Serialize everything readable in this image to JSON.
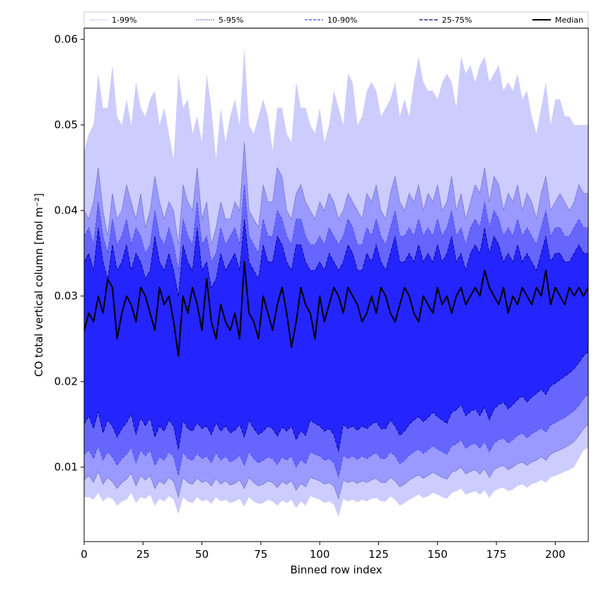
{
  "chart_data": {
    "type": "area",
    "xlabel": "Binned row index",
    "ylabel": "CO total vertical column [mol m⁻²]",
    "xlim": [
      0,
      214
    ],
    "ylim": [
      0.0013,
      0.0613
    ],
    "xticks": [
      0,
      25,
      50,
      75,
      100,
      125,
      150,
      175,
      200
    ],
    "xtick_labels": [
      "0",
      "25",
      "50",
      "75",
      "100",
      "125",
      "150",
      "175",
      "200"
    ],
    "yticks": [
      0.01,
      0.02,
      0.03,
      0.04,
      0.05,
      0.06
    ],
    "ytick_labels": [
      "0.01",
      "0.02",
      "0.03",
      "0.04",
      "0.05",
      "0.06"
    ],
    "grid": false,
    "legend_position": "top, outside plot, single row",
    "legend": [
      "1-99%",
      "5-95%",
      "10-90%",
      "25-75%",
      "Median"
    ],
    "colors": {
      "band_1_99": "#ccccff",
      "band_5_95": "#9999ff",
      "band_10_90": "#6666ff",
      "band_25_75": "#2424ff",
      "median": "#000000",
      "edge_5_95": "#6464aa",
      "edge_10_90": "#4444ee",
      "edge_25_75": "#00007a"
    },
    "x_step": 2,
    "series": [
      {
        "name": "1-99%",
        "kind": "band",
        "upper": [
          0.047,
          0.049,
          0.05,
          0.056,
          0.052,
          0.052,
          0.057,
          0.051,
          0.05,
          0.053,
          0.05,
          0.055,
          0.052,
          0.051,
          0.053,
          0.054,
          0.05,
          0.052,
          0.049,
          0.046,
          0.056,
          0.052,
          0.053,
          0.049,
          0.051,
          0.048,
          0.056,
          0.052,
          0.046,
          0.052,
          0.048,
          0.051,
          0.053,
          0.05,
          0.059,
          0.05,
          0.049,
          0.051,
          0.053,
          0.051,
          0.047,
          0.052,
          0.052,
          0.049,
          0.048,
          0.055,
          0.052,
          0.052,
          0.05,
          0.049,
          0.052,
          0.048,
          0.05,
          0.054,
          0.052,
          0.05,
          0.056,
          0.055,
          0.05,
          0.051,
          0.054,
          0.055,
          0.054,
          0.051,
          0.052,
          0.053,
          0.055,
          0.051,
          0.053,
          0.051,
          0.055,
          0.058,
          0.055,
          0.054,
          0.054,
          0.053,
          0.055,
          0.056,
          0.055,
          0.052,
          0.058,
          0.056,
          0.057,
          0.055,
          0.057,
          0.058,
          0.055,
          0.056,
          0.057,
          0.054,
          0.055,
          0.054,
          0.056,
          0.053,
          0.054,
          0.051,
          0.049,
          0.052,
          0.055,
          0.05,
          0.053,
          0.053,
          0.051,
          0.051,
          0.05,
          0.05,
          0.05,
          0.05
        ],
        "lower": [
          0.0065,
          0.0065,
          0.0062,
          0.007,
          0.006,
          0.0065,
          0.0063,
          0.0055,
          0.006,
          0.0062,
          0.007,
          0.0058,
          0.0065,
          0.0063,
          0.0068,
          0.0055,
          0.0063,
          0.006,
          0.0066,
          0.0062,
          0.0045,
          0.0065,
          0.006,
          0.0058,
          0.0065,
          0.006,
          0.0062,
          0.0057,
          0.0065,
          0.006,
          0.0062,
          0.0058,
          0.006,
          0.0063,
          0.0054,
          0.0065,
          0.006,
          0.0057,
          0.0058,
          0.0062,
          0.006,
          0.0055,
          0.0061,
          0.0058,
          0.0062,
          0.0052,
          0.006,
          0.0055,
          0.0066,
          0.0064,
          0.0062,
          0.0058,
          0.006,
          0.0056,
          0.0042,
          0.0063,
          0.006,
          0.0062,
          0.0059,
          0.0062,
          0.006,
          0.0063,
          0.0064,
          0.006,
          0.006,
          0.0066,
          0.0062,
          0.0055,
          0.0058,
          0.0062,
          0.0065,
          0.0068,
          0.0064,
          0.0066,
          0.007,
          0.0068,
          0.0065,
          0.0063,
          0.007,
          0.0072,
          0.0075,
          0.0068,
          0.007,
          0.0072,
          0.0068,
          0.0073,
          0.0064,
          0.0072,
          0.0075,
          0.0076,
          0.0072,
          0.0074,
          0.0078,
          0.008,
          0.0076,
          0.008,
          0.0082,
          0.0085,
          0.0082,
          0.0088,
          0.009,
          0.0092,
          0.0095,
          0.0097,
          0.01,
          0.011,
          0.012,
          0.0123
        ]
      },
      {
        "name": "5-95%",
        "kind": "band",
        "upper": [
          0.04,
          0.039,
          0.041,
          0.045,
          0.04,
          0.037,
          0.042,
          0.039,
          0.04,
          0.043,
          0.041,
          0.039,
          0.042,
          0.038,
          0.04,
          0.044,
          0.041,
          0.039,
          0.041,
          0.04,
          0.036,
          0.043,
          0.041,
          0.04,
          0.045,
          0.039,
          0.041,
          0.036,
          0.038,
          0.041,
          0.039,
          0.039,
          0.041,
          0.04,
          0.048,
          0.04,
          0.039,
          0.038,
          0.043,
          0.041,
          0.041,
          0.045,
          0.044,
          0.04,
          0.039,
          0.042,
          0.043,
          0.041,
          0.04,
          0.039,
          0.041,
          0.04,
          0.042,
          0.041,
          0.039,
          0.04,
          0.042,
          0.041,
          0.04,
          0.039,
          0.042,
          0.041,
          0.043,
          0.04,
          0.039,
          0.042,
          0.044,
          0.041,
          0.04,
          0.042,
          0.041,
          0.043,
          0.04,
          0.042,
          0.041,
          0.043,
          0.04,
          0.041,
          0.044,
          0.04,
          0.042,
          0.039,
          0.041,
          0.043,
          0.042,
          0.045,
          0.041,
          0.044,
          0.043,
          0.04,
          0.042,
          0.041,
          0.043,
          0.04,
          0.042,
          0.041,
          0.039,
          0.042,
          0.044,
          0.04,
          0.041,
          0.042,
          0.041,
          0.04,
          0.041,
          0.043,
          0.042,
          0.042
        ],
        "lower": [
          0.0085,
          0.009,
          0.0082,
          0.0095,
          0.008,
          0.0088,
          0.0083,
          0.0075,
          0.0082,
          0.0086,
          0.0093,
          0.0078,
          0.009,
          0.0085,
          0.009,
          0.0075,
          0.0084,
          0.008,
          0.0088,
          0.0083,
          0.0065,
          0.0088,
          0.0082,
          0.008,
          0.0087,
          0.0082,
          0.0084,
          0.0078,
          0.0087,
          0.008,
          0.0084,
          0.0079,
          0.0081,
          0.0085,
          0.0075,
          0.0088,
          0.0082,
          0.0078,
          0.008,
          0.0084,
          0.0082,
          0.0076,
          0.0083,
          0.008,
          0.0084,
          0.0073,
          0.0081,
          0.0077,
          0.0088,
          0.0086,
          0.0084,
          0.008,
          0.0082,
          0.0078,
          0.0063,
          0.0085,
          0.0082,
          0.0084,
          0.0081,
          0.0084,
          0.0082,
          0.0085,
          0.0087,
          0.0082,
          0.0082,
          0.0088,
          0.0084,
          0.0077,
          0.008,
          0.0085,
          0.0088,
          0.0091,
          0.0087,
          0.009,
          0.0094,
          0.0091,
          0.0088,
          0.0086,
          0.0094,
          0.0096,
          0.01,
          0.0092,
          0.0095,
          0.0097,
          0.0092,
          0.0098,
          0.0088,
          0.0097,
          0.01,
          0.0102,
          0.0097,
          0.01,
          0.0104,
          0.0106,
          0.0102,
          0.0106,
          0.0108,
          0.0112,
          0.0108,
          0.0115,
          0.0118,
          0.012,
          0.0123,
          0.0126,
          0.013,
          0.0137,
          0.0145,
          0.015
        ]
      },
      {
        "name": "10-90%",
        "kind": "band",
        "upper": [
          0.037,
          0.038,
          0.036,
          0.041,
          0.037,
          0.035,
          0.039,
          0.036,
          0.037,
          0.039,
          0.036,
          0.038,
          0.037,
          0.035,
          0.036,
          0.04,
          0.037,
          0.036,
          0.038,
          0.036,
          0.033,
          0.039,
          0.037,
          0.036,
          0.041,
          0.036,
          0.037,
          0.034,
          0.035,
          0.038,
          0.036,
          0.037,
          0.038,
          0.036,
          0.043,
          0.037,
          0.036,
          0.035,
          0.039,
          0.037,
          0.037,
          0.04,
          0.039,
          0.037,
          0.036,
          0.039,
          0.039,
          0.037,
          0.036,
          0.036,
          0.037,
          0.036,
          0.038,
          0.037,
          0.036,
          0.037,
          0.039,
          0.038,
          0.036,
          0.036,
          0.038,
          0.037,
          0.039,
          0.037,
          0.036,
          0.038,
          0.04,
          0.037,
          0.037,
          0.038,
          0.037,
          0.039,
          0.037,
          0.038,
          0.037,
          0.039,
          0.037,
          0.038,
          0.04,
          0.037,
          0.038,
          0.036,
          0.038,
          0.039,
          0.038,
          0.041,
          0.038,
          0.04,
          0.039,
          0.037,
          0.038,
          0.037,
          0.039,
          0.037,
          0.038,
          0.037,
          0.036,
          0.038,
          0.04,
          0.037,
          0.038,
          0.038,
          0.037,
          0.037,
          0.038,
          0.039,
          0.038,
          0.038
        ],
        "lower": [
          0.0115,
          0.012,
          0.011,
          0.0125,
          0.0108,
          0.0118,
          0.0112,
          0.0102,
          0.011,
          0.0115,
          0.0123,
          0.0105,
          0.012,
          0.0113,
          0.012,
          0.0102,
          0.0112,
          0.0108,
          0.0118,
          0.0112,
          0.009,
          0.0118,
          0.011,
          0.0108,
          0.0116,
          0.011,
          0.0113,
          0.0105,
          0.0117,
          0.0108,
          0.0113,
          0.0106,
          0.0109,
          0.0114,
          0.0102,
          0.0118,
          0.011,
          0.0105,
          0.0108,
          0.0112,
          0.011,
          0.0103,
          0.0112,
          0.0108,
          0.0113,
          0.01,
          0.0109,
          0.0104,
          0.0118,
          0.0115,
          0.0113,
          0.0108,
          0.011,
          0.0105,
          0.0088,
          0.0114,
          0.011,
          0.0113,
          0.0109,
          0.0113,
          0.011,
          0.0114,
          0.0117,
          0.011,
          0.011,
          0.0118,
          0.0113,
          0.0104,
          0.0108,
          0.0114,
          0.0118,
          0.0121,
          0.0116,
          0.012,
          0.0125,
          0.0121,
          0.0118,
          0.0115,
          0.0125,
          0.0127,
          0.0132,
          0.0122,
          0.0126,
          0.0128,
          0.0122,
          0.013,
          0.0118,
          0.0128,
          0.0132,
          0.0134,
          0.0128,
          0.0132,
          0.0137,
          0.014,
          0.0134,
          0.0139,
          0.0142,
          0.0146,
          0.0141,
          0.0149,
          0.0152,
          0.0155,
          0.0158,
          0.0162,
          0.0166,
          0.0172,
          0.018,
          0.0185
        ]
      },
      {
        "name": "25-75%",
        "kind": "band",
        "upper": [
          0.034,
          0.035,
          0.033,
          0.038,
          0.034,
          0.032,
          0.036,
          0.033,
          0.034,
          0.036,
          0.033,
          0.035,
          0.034,
          0.032,
          0.033,
          0.037,
          0.034,
          0.033,
          0.035,
          0.033,
          0.03,
          0.036,
          0.034,
          0.033,
          0.038,
          0.033,
          0.034,
          0.031,
          0.032,
          0.035,
          0.033,
          0.034,
          0.035,
          0.033,
          0.039,
          0.034,
          0.033,
          0.032,
          0.036,
          0.034,
          0.034,
          0.037,
          0.036,
          0.034,
          0.033,
          0.036,
          0.036,
          0.034,
          0.033,
          0.033,
          0.034,
          0.033,
          0.035,
          0.034,
          0.033,
          0.034,
          0.036,
          0.035,
          0.033,
          0.033,
          0.035,
          0.034,
          0.036,
          0.034,
          0.033,
          0.035,
          0.037,
          0.034,
          0.034,
          0.035,
          0.034,
          0.036,
          0.034,
          0.035,
          0.034,
          0.036,
          0.034,
          0.035,
          0.037,
          0.034,
          0.035,
          0.033,
          0.035,
          0.036,
          0.035,
          0.038,
          0.035,
          0.037,
          0.036,
          0.034,
          0.035,
          0.034,
          0.036,
          0.034,
          0.035,
          0.034,
          0.033,
          0.035,
          0.037,
          0.034,
          0.035,
          0.035,
          0.034,
          0.034,
          0.035,
          0.036,
          0.035,
          0.035
        ],
        "lower": [
          0.015,
          0.016,
          0.0145,
          0.0165,
          0.014,
          0.0155,
          0.0148,
          0.0135,
          0.0145,
          0.0152,
          0.0162,
          0.0138,
          0.0158,
          0.0148,
          0.0158,
          0.0135,
          0.0148,
          0.0142,
          0.0155,
          0.0148,
          0.012,
          0.0155,
          0.0145,
          0.0142,
          0.0152,
          0.0145,
          0.0148,
          0.0138,
          0.0152,
          0.0142,
          0.0148,
          0.014,
          0.0143,
          0.015,
          0.0135,
          0.0155,
          0.0145,
          0.0138,
          0.0142,
          0.0148,
          0.0145,
          0.0136,
          0.0147,
          0.0142,
          0.0148,
          0.0132,
          0.0143,
          0.0137,
          0.0155,
          0.0151,
          0.0148,
          0.0142,
          0.0145,
          0.0138,
          0.0118,
          0.015,
          0.0145,
          0.0148,
          0.0143,
          0.0148,
          0.0145,
          0.015,
          0.0153,
          0.0145,
          0.0145,
          0.0155,
          0.0148,
          0.0137,
          0.0142,
          0.015,
          0.0155,
          0.0159,
          0.0153,
          0.0158,
          0.0164,
          0.0159,
          0.0155,
          0.0151,
          0.0164,
          0.0167,
          0.0173,
          0.016,
          0.0165,
          0.0168,
          0.016,
          0.017,
          0.0155,
          0.0168,
          0.0173,
          0.0176,
          0.0168,
          0.0173,
          0.0179,
          0.0183,
          0.0176,
          0.0182,
          0.0186,
          0.0191,
          0.0185,
          0.0195,
          0.0198,
          0.0202,
          0.0206,
          0.021,
          0.0215,
          0.0222,
          0.023,
          0.0235
        ]
      },
      {
        "name": "Median",
        "kind": "line",
        "values": [
          0.026,
          0.028,
          0.027,
          0.03,
          0.028,
          0.032,
          0.031,
          0.025,
          0.028,
          0.03,
          0.029,
          0.027,
          0.031,
          0.03,
          0.028,
          0.026,
          0.031,
          0.029,
          0.03,
          0.027,
          0.023,
          0.03,
          0.028,
          0.031,
          0.029,
          0.026,
          0.032,
          0.027,
          0.025,
          0.029,
          0.027,
          0.026,
          0.028,
          0.025,
          0.034,
          0.028,
          0.027,
          0.025,
          0.03,
          0.028,
          0.026,
          0.029,
          0.031,
          0.028,
          0.024,
          0.027,
          0.031,
          0.029,
          0.028,
          0.025,
          0.03,
          0.027,
          0.029,
          0.031,
          0.03,
          0.028,
          0.031,
          0.03,
          0.029,
          0.027,
          0.028,
          0.03,
          0.028,
          0.031,
          0.03,
          0.028,
          0.027,
          0.029,
          0.031,
          0.03,
          0.028,
          0.027,
          0.03,
          0.029,
          0.028,
          0.031,
          0.029,
          0.03,
          0.028,
          0.03,
          0.031,
          0.029,
          0.03,
          0.031,
          0.03,
          0.033,
          0.031,
          0.03,
          0.029,
          0.031,
          0.028,
          0.03,
          0.029,
          0.031,
          0.03,
          0.029,
          0.031,
          0.03,
          0.033,
          0.029,
          0.031,
          0.03,
          0.029,
          0.031,
          0.03,
          0.031,
          0.03,
          0.031
        ]
      }
    ]
  }
}
